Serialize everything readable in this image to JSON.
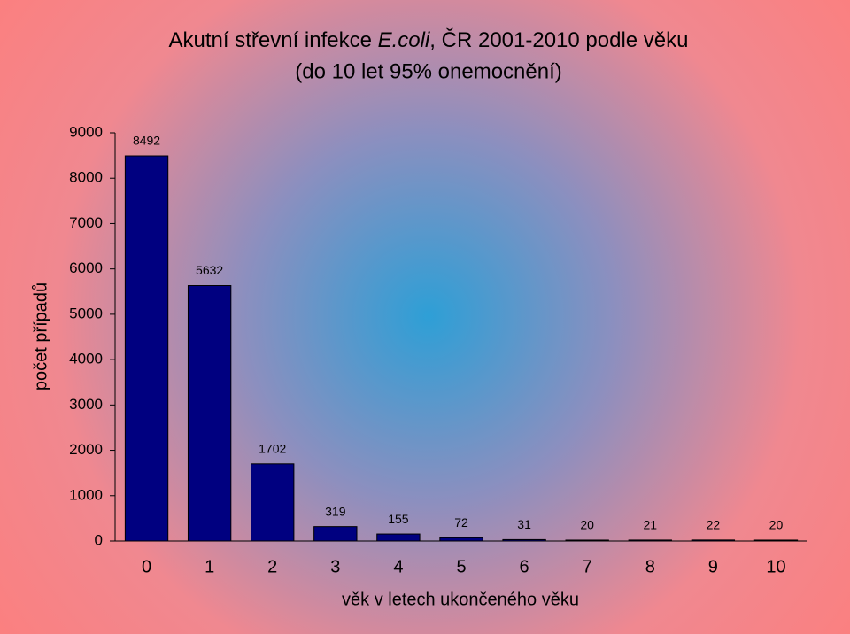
{
  "chart_data": {
    "type": "bar",
    "title": [
      "Akutní střevní infekce ",
      "E.coli",
      ", ČR 2001-2010 podle věku"
    ],
    "subtitle": "(do 10 let 95% onemocnění)",
    "x_label": "věk v letech ukončeného věku",
    "y_label": "počet případů",
    "categories": [
      "0",
      "1",
      "2",
      "3",
      "4",
      "5",
      "6",
      "7",
      "8",
      "9",
      "10"
    ],
    "values": [
      8492,
      5632,
      1702,
      319,
      155,
      72,
      31,
      20,
      21,
      22,
      20
    ],
    "color": "#000080",
    "ylim": [
      0,
      9000
    ],
    "yticks": [
      0,
      1000,
      2000,
      3000,
      4000,
      5000,
      6000,
      7000,
      8000,
      9000
    ],
    "grid": false
  }
}
